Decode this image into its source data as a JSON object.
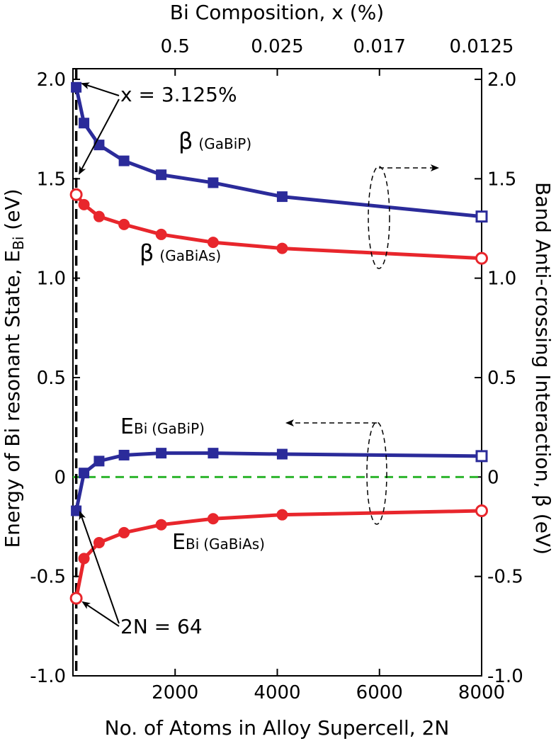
{
  "chart_data": {
    "type": "line",
    "title": "",
    "xlabel": "No. of Atoms in Alloy Supercell, 2N",
    "top_xlabel": "Bi Composition, x (%)",
    "ylabel_left": "Energy of Bi resonant State, EBi (eV)",
    "ylabel_right": "Band Anti-crossing Interaction, β (eV)",
    "xlim": [
      0,
      8000
    ],
    "ylim": [
      -1.0,
      2.0
    ],
    "x_ticks": [
      "2000",
      "4000",
      "6000",
      "8000"
    ],
    "x_tick_values": [
      2000,
      4000,
      6000,
      8000
    ],
    "y_ticks_left": [
      "2.0",
      "1.5",
      "1.0",
      "0.5",
      "0",
      "-0.5",
      "-1.0"
    ],
    "y_ticks_right": [
      "2.0",
      "1.5",
      "1.0",
      "0.5",
      "0",
      "-0.5",
      "-1.0"
    ],
    "y_tick_values": [
      2.0,
      1.5,
      1.0,
      0.5,
      0,
      -0.5,
      -1.0
    ],
    "top_ticks": [
      {
        "label": "0.5",
        "x": 2000
      },
      {
        "label": "0.025",
        "x": 4000
      },
      {
        "label": "0.017",
        "x": 6000
      },
      {
        "label": "0.0125",
        "x": 8000
      }
    ],
    "x": [
      64,
      216,
      512,
      1000,
      1728,
      2744,
      4096,
      8000
    ],
    "series": [
      {
        "name": "β (GaBiP)",
        "marker": "square",
        "color": "#2b2b9a",
        "values": [
          1.96,
          1.78,
          1.67,
          1.59,
          1.52,
          1.48,
          1.41,
          1.31
        ]
      },
      {
        "name": "β (GaBiAs)",
        "marker": "circle",
        "color": "#e8262c",
        "values": [
          1.42,
          1.37,
          1.31,
          1.27,
          1.22,
          1.18,
          1.15,
          1.1
        ]
      },
      {
        "name": "EBi (GaBiP)",
        "marker": "square",
        "color": "#2b2b9a",
        "values": [
          -0.17,
          0.02,
          0.08,
          0.11,
          0.12,
          0.12,
          0.115,
          0.105
        ]
      },
      {
        "name": "EBi (GaBiAs)",
        "marker": "circle",
        "color": "#e8262c",
        "values": [
          -0.61,
          -0.41,
          -0.33,
          -0.28,
          -0.24,
          -0.21,
          -0.19,
          -0.17
        ]
      }
    ],
    "zero_line": {
      "y": 0,
      "color": "#2db52d",
      "style": "dashed"
    },
    "vertical_marker": {
      "x": 64,
      "style": "dashed"
    },
    "annotations": {
      "composition": "x = 3.125%",
      "atoms": "2N = 64",
      "beta_main": "β",
      "beta_gabip_sub": "(GaBiP)",
      "beta_gabias_sub": "(GaBiAs)",
      "ebi_main": "E",
      "ebi_bi": "Bi",
      "ebi_gabip_sub": "(GaBiP)",
      "ebi_gabias_sub": "(GaBiAs)"
    }
  }
}
